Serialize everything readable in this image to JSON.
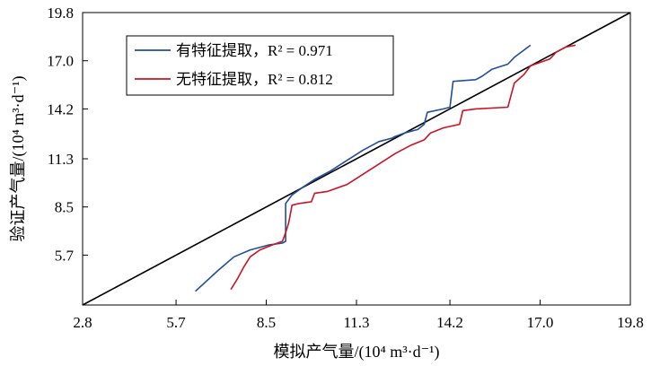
{
  "chart_data": {
    "type": "line",
    "xlabel": "模拟产气量/(10⁴ m³·d⁻¹)",
    "ylabel": "验证产气量/(10⁴ m³·d⁻¹)",
    "xlim": [
      2.8,
      19.8
    ],
    "ylim": [
      2.8,
      19.8
    ],
    "xticks": [
      "2.8",
      "5.7",
      "8.5",
      "11.3",
      "14.2",
      "17.0",
      "19.8"
    ],
    "yticks": [
      "5.7",
      "8.5",
      "11.3",
      "14.2",
      "17.0",
      "19.8"
    ],
    "grid": false,
    "legend_position": "top-left",
    "reference_line": {
      "x": [
        2.8,
        19.8
      ],
      "y": [
        2.8,
        19.8
      ],
      "color": "#000000"
    },
    "series": [
      {
        "name": "有特征提取，R² = 0.971",
        "color": "#1f4e9c",
        "x": [
          6.3,
          7.0,
          7.5,
          8.0,
          8.6,
          9.0,
          9.1,
          9.1,
          9.3,
          9.6,
          10.0,
          10.5,
          11.0,
          11.5,
          12.0,
          12.4,
          12.5,
          12.8,
          13.2,
          13.4,
          13.5,
          14.0,
          14.2,
          14.3,
          15.0,
          15.2,
          15.5,
          16.0,
          16.2,
          16.7
        ],
        "y": [
          3.6,
          4.8,
          5.6,
          6.0,
          6.3,
          6.4,
          6.5,
          8.7,
          9.2,
          9.6,
          10.1,
          10.6,
          11.2,
          11.8,
          12.3,
          12.5,
          12.6,
          12.8,
          13.0,
          13.3,
          14.0,
          14.2,
          14.3,
          15.8,
          15.9,
          16.1,
          16.5,
          16.8,
          17.2,
          17.9
        ]
      },
      {
        "name": "无特征提取，R² = 0.812",
        "color": "#cc1424",
        "x": [
          7.4,
          7.6,
          7.8,
          8.0,
          8.3,
          8.7,
          9.0,
          9.1,
          9.2,
          9.3,
          9.5,
          9.9,
          10.0,
          10.4,
          11.0,
          11.5,
          12.0,
          12.5,
          13.0,
          13.4,
          13.6,
          14.0,
          14.5,
          14.6,
          15.0,
          16.0,
          16.2,
          16.5,
          16.7,
          17.3,
          17.5,
          17.8,
          18.1
        ],
        "y": [
          3.7,
          4.3,
          5.0,
          5.6,
          6.0,
          6.3,
          6.5,
          7.0,
          7.6,
          8.6,
          8.7,
          8.8,
          9.3,
          9.4,
          9.8,
          10.4,
          11.0,
          11.6,
          12.1,
          12.4,
          12.8,
          13.1,
          13.3,
          14.1,
          14.2,
          14.3,
          15.7,
          16.2,
          16.7,
          17.1,
          17.5,
          17.8,
          17.9
        ]
      }
    ]
  }
}
